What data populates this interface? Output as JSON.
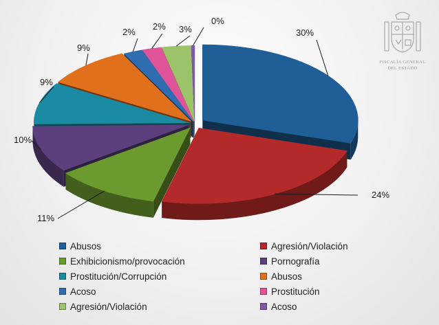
{
  "chart_data": {
    "type": "pie",
    "title": "",
    "slices": [
      {
        "label": "Abusos",
        "value": 30,
        "display": "30%",
        "color": "#1f5e96"
      },
      {
        "label": "Agresión/Violación",
        "value": 24,
        "display": "24%",
        "color": "#b42a2a"
      },
      {
        "label": "Exhibicionismo/provocación",
        "value": 11,
        "display": "11%",
        "color": "#6b9a2e"
      },
      {
        "label": "Pornografía",
        "value": 10,
        "display": "10%",
        "color": "#5c3f7d"
      },
      {
        "label": "Prostitución/Corrupción",
        "value": 9,
        "display": "9%",
        "color": "#1b8ba3"
      },
      {
        "label": "Abusos",
        "value": 9,
        "display": "9%",
        "color": "#e0701c"
      },
      {
        "label": "Acoso",
        "value": 2,
        "display": "2%",
        "color": "#2f6db0"
      },
      {
        "label": "Prostitución",
        "value": 2,
        "display": "2%",
        "color": "#e0559a"
      },
      {
        "label": "Agresión/Violación",
        "value": 3,
        "display": "3%",
        "color": "#9cc36a"
      },
      {
        "label": "Acoso",
        "value": 0,
        "display": "0%",
        "color": "#7d5aa6"
      }
    ],
    "legend_position": "bottom"
  },
  "logo": {
    "line1": "FISCALÍA GENERAL",
    "line2": "DEL ESTADO"
  }
}
